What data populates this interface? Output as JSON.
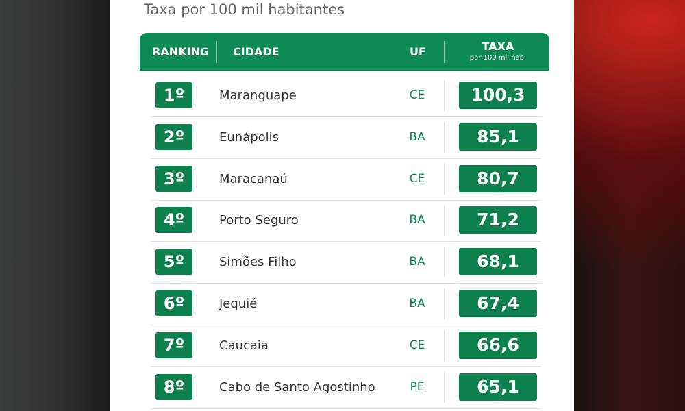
{
  "subtitle": "Taxa por 100 mil habitantes",
  "table": {
    "header": {
      "ranking": "RANKING",
      "cidade": "CIDADE",
      "uf": "UF",
      "taxa": "TAXA",
      "taxa_unit": "por 100 mil hab."
    },
    "rows": [
      [
        "1º",
        "Maranguape",
        "CE",
        "100,3"
      ],
      [
        "2º",
        "Eunápolis",
        "BA",
        "85,1"
      ],
      [
        "3º",
        "Maracanaú",
        "CE",
        "80,7"
      ],
      [
        "4º",
        "Porto Seguro",
        "BA",
        "71,2"
      ],
      [
        "5º",
        "Simões Filho",
        "BA",
        "68,1"
      ],
      [
        "6º",
        "Jequié",
        "BA",
        "67,4"
      ],
      [
        "7º",
        "Caucaia",
        "CE",
        "66,6"
      ],
      [
        "8º",
        "Cabo de Santo Agostinho",
        "PE",
        "65,1"
      ]
    ]
  }
}
